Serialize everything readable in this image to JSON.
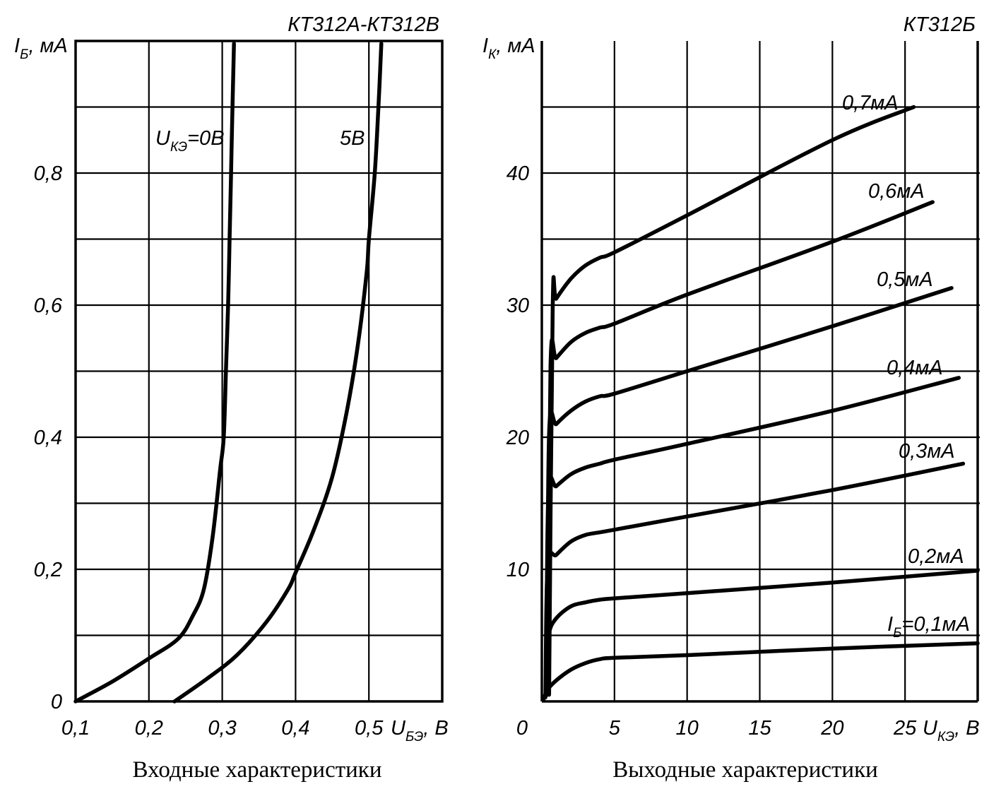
{
  "chart_data": [
    {
      "type": "line",
      "title": "КТ312А-КТ312В",
      "caption": "Входные характеристики",
      "ylabel": {
        "main": "I",
        "sub": "Б",
        "unit": ", мА"
      },
      "xlabel": {
        "main": "U",
        "sub": "БЭ",
        "unit": ", В"
      },
      "xlim": [
        0.1,
        0.6
      ],
      "ylim": [
        0,
        1.0
      ],
      "x_ticks": [
        0.1,
        0.2,
        0.3,
        0.4,
        0.5
      ],
      "x_tick_labels": [
        "0,1",
        "0,2",
        "0,3",
        "0,4",
        "0,5"
      ],
      "y_ticks": [
        0,
        0.2,
        0.4,
        0.6,
        0.8
      ],
      "y_tick_labels": [
        "0",
        "0,2",
        "0,4",
        "0,6",
        "0,8"
      ],
      "grid": true,
      "series": [
        {
          "name": "U_КЭ=0В",
          "label": {
            "main": "U",
            "sub": "КЭ",
            "rest": "=0В"
          },
          "points": [
            [
              0.1,
              0.0
            ],
            [
              0.15,
              0.03
            ],
            [
              0.2,
              0.065
            ],
            [
              0.24,
              0.095
            ],
            [
              0.26,
              0.13
            ],
            [
              0.275,
              0.17
            ],
            [
              0.287,
              0.25
            ],
            [
              0.297,
              0.35
            ],
            [
              0.302,
              0.4
            ],
            [
              0.305,
              0.5
            ],
            [
              0.308,
              0.6
            ],
            [
              0.31,
              0.7
            ],
            [
              0.312,
              0.8
            ],
            [
              0.314,
              0.9
            ],
            [
              0.316,
              0.996
            ]
          ]
        },
        {
          "name": "5В",
          "label": {
            "main": "5В",
            "sub": "",
            "rest": ""
          },
          "points": [
            [
              0.235,
              0.0
            ],
            [
              0.28,
              0.035
            ],
            [
              0.32,
              0.07
            ],
            [
              0.36,
              0.12
            ],
            [
              0.39,
              0.17
            ],
            [
              0.4,
              0.195
            ],
            [
              0.425,
              0.26
            ],
            [
              0.45,
              0.34
            ],
            [
              0.47,
              0.44
            ],
            [
              0.485,
              0.54
            ],
            [
              0.497,
              0.65
            ],
            [
              0.5,
              0.7
            ],
            [
              0.508,
              0.8
            ],
            [
              0.513,
              0.9
            ],
            [
              0.517,
              0.996
            ]
          ]
        }
      ]
    },
    {
      "type": "line",
      "title": "КТ312Б",
      "caption": "Выходные характеристики",
      "ylabel": {
        "main": "I",
        "sub": "К",
        "unit": ", мА"
      },
      "xlabel": {
        "main": "U",
        "sub": "КЭ",
        "unit": ", В"
      },
      "xlim": [
        0,
        30
      ],
      "ylim": [
        0,
        50
      ],
      "x_ticks": [
        0,
        5,
        10,
        15,
        20,
        25
      ],
      "x_tick_labels": [
        "0",
        "5",
        "10",
        "15",
        "20",
        "25"
      ],
      "y_ticks": [
        10,
        20,
        30,
        40
      ],
      "y_tick_labels": [
        "10",
        "20",
        "30",
        "40"
      ],
      "grid": true,
      "series": [
        {
          "name": "I_Б=0,1мА",
          "label": {
            "main": "I",
            "sub": "Б",
            "rest": "=0,1мА"
          },
          "points": [
            [
              0.1,
              0.1
            ],
            [
              0.4,
              0.9
            ],
            [
              1,
              1.6
            ],
            [
              2,
              2.4
            ],
            [
              3,
              2.9
            ],
            [
              4,
              3.2
            ],
            [
              5,
              3.3
            ],
            [
              10,
              3.5
            ],
            [
              20,
              4.0
            ],
            [
              30,
              4.4
            ]
          ]
        },
        {
          "name": "0,2мА",
          "label": {
            "main": "0,2мА",
            "sub": "",
            "rest": ""
          },
          "points": [
            [
              0.25,
              0.3
            ],
            [
              0.35,
              3.0
            ],
            [
              0.5,
              5.2
            ],
            [
              1,
              6.3
            ],
            [
              2,
              7.2
            ],
            [
              3,
              7.5
            ],
            [
              4,
              7.7
            ],
            [
              5,
              7.8
            ],
            [
              10,
              8.2
            ],
            [
              20,
              9.0
            ],
            [
              30,
              9.9
            ]
          ]
        },
        {
          "name": "0,3мА",
          "label": {
            "main": "0,3мА",
            "sub": "",
            "rest": ""
          },
          "points": [
            [
              0.25,
              0.4
            ],
            [
              0.4,
              10.3
            ],
            [
              1,
              11.1
            ],
            [
              2,
              12.1
            ],
            [
              3,
              12.6
            ],
            [
              4,
              12.8
            ],
            [
              5,
              13.0
            ],
            [
              10,
              14.0
            ],
            [
              20,
              16.0
            ],
            [
              29,
              18.0
            ]
          ]
        },
        {
          "name": "0,4мА",
          "label": {
            "main": "0,4мА",
            "sub": "",
            "rest": ""
          },
          "points": [
            [
              0.3,
              0.5
            ],
            [
              0.45,
              15.7
            ],
            [
              1,
              16.3
            ],
            [
              2,
              17.2
            ],
            [
              3,
              17.7
            ],
            [
              4,
              18.0
            ],
            [
              5,
              18.3
            ],
            [
              10,
              19.5
            ],
            [
              20,
              22.0
            ],
            [
              28.7,
              24.5
            ]
          ]
        },
        {
          "name": "0,5мА",
          "label": {
            "main": "0,5мА",
            "sub": "",
            "rest": ""
          },
          "points": [
            [
              0.35,
              0.5
            ],
            [
              0.5,
              20.3
            ],
            [
              1,
              21.0
            ],
            [
              2,
              22.0
            ],
            [
              3,
              22.7
            ],
            [
              4,
              23.1
            ],
            [
              5,
              23.3
            ],
            [
              10,
              25.0
            ],
            [
              20,
              28.4
            ],
            [
              28.2,
              31.3
            ]
          ]
        },
        {
          "name": "0,6мА",
          "label": {
            "main": "0,6мА",
            "sub": "",
            "rest": ""
          },
          "points": [
            [
              0.4,
              0.5
            ],
            [
              0.6,
              25.4
            ],
            [
              1,
              26.0
            ],
            [
              2,
              27.2
            ],
            [
              3,
              27.9
            ],
            [
              4,
              28.3
            ],
            [
              5,
              28.6
            ],
            [
              10,
              30.8
            ],
            [
              20,
              34.8
            ],
            [
              26.9,
              37.8
            ]
          ]
        },
        {
          "name": "0,7мА",
          "label": {
            "main": "0,7мА",
            "sub": "",
            "rest": ""
          },
          "points": [
            [
              0.5,
              0.5
            ],
            [
              0.75,
              29.8
            ],
            [
              1,
              30.5
            ],
            [
              2,
              32.0
            ],
            [
              3,
              33.0
            ],
            [
              4,
              33.6
            ],
            [
              5,
              34.0
            ],
            [
              10,
              36.8
            ],
            [
              20,
              42.5
            ],
            [
              25.6,
              45.0
            ]
          ]
        }
      ]
    }
  ]
}
